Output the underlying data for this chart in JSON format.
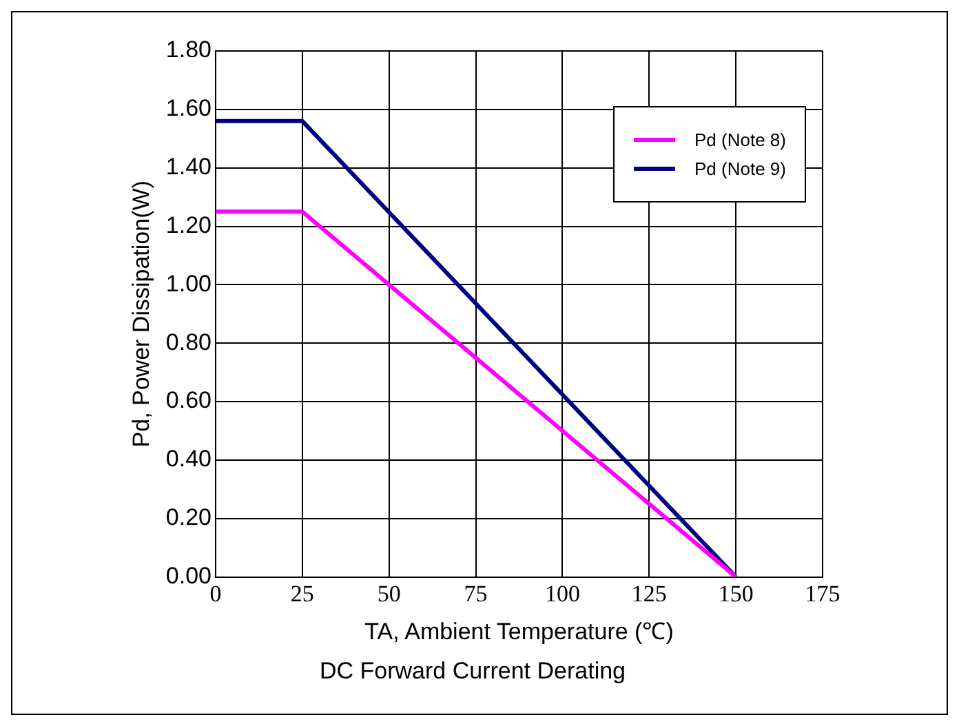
{
  "chart_data": {
    "type": "line",
    "title": "DC Forward Current Derating",
    "xlabel": "TA, Ambient Temperature (℃)",
    "ylabel": "Pd, Power Dissipation(W)",
    "series": [
      {
        "name": "Pd (Note 8)",
        "color": "#ff00ff",
        "x": [
          0,
          25,
          150
        ],
        "values": [
          1.25,
          1.25,
          0
        ]
      },
      {
        "name": "Pd (Note 9)",
        "color": "#000080",
        "x": [
          0,
          25,
          150
        ],
        "values": [
          1.56,
          1.56,
          0
        ]
      }
    ],
    "xlim": [
      0,
      175
    ],
    "xticks": [
      0,
      25,
      50,
      75,
      100,
      125,
      150,
      175
    ],
    "ylim": [
      0,
      1.8
    ],
    "yticks": [
      {
        "value": 0,
        "label": "0.00"
      },
      {
        "value": 0.2,
        "label": "0.20"
      },
      {
        "value": 0.4,
        "label": "0.40"
      },
      {
        "value": 0.6,
        "label": "0.60"
      },
      {
        "value": 0.8,
        "label": "0.80"
      },
      {
        "value": 1,
        "label": "1.00"
      },
      {
        "value": 1.2,
        "label": "1.20"
      },
      {
        "value": 1.4,
        "label": "1.40"
      },
      {
        "value": 1.6,
        "label": "1.60"
      },
      {
        "value": 1.8,
        "label": "1.80"
      }
    ],
    "grid": true,
    "legend": "top right",
    "marker": "none",
    "line_style": "solid"
  }
}
